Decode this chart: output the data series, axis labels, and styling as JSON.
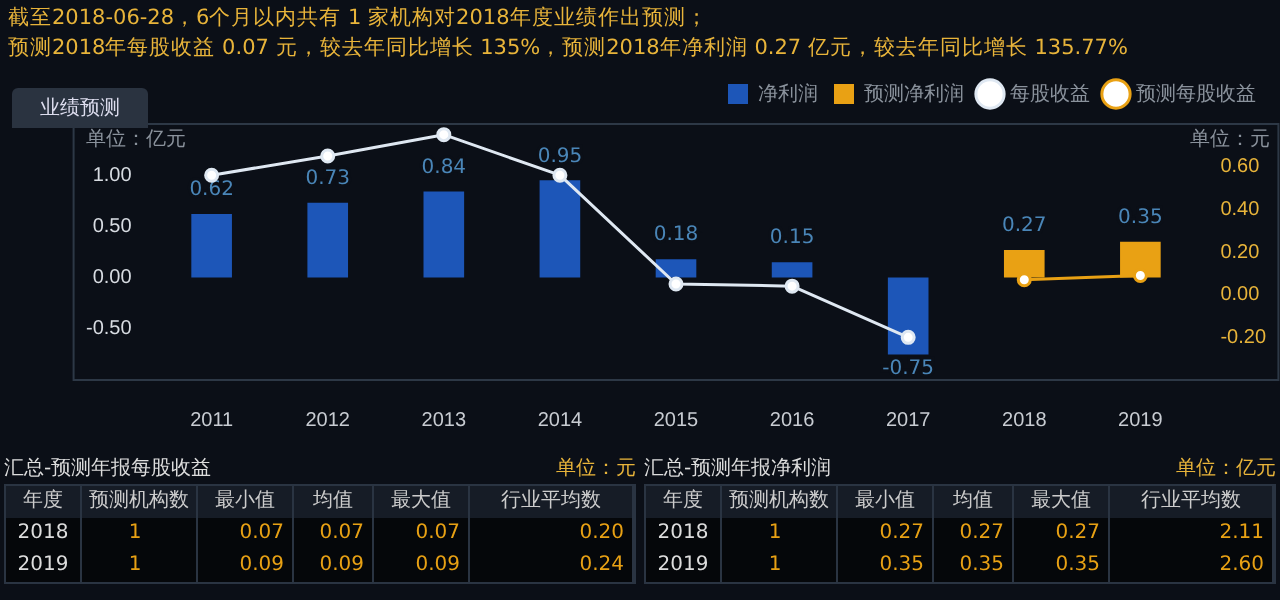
{
  "chart_data": [
    {
      "type": "bar",
      "title": "截至2018-06-28，6个月以内共有 1 家机构对2018年度业绩作出预测；",
      "subtitle": "预测2018年每股收益 0.07 元，较去年同比增长 135%，预测2018年净利润 0.27 亿元，较去年同比增长 135.77%",
      "ylabel": "单位：亿元",
      "y2label": "单位：元",
      "annotations": [
        "业绩预测"
      ],
      "categories": [
        "2011",
        "2012",
        "2013",
        "2014",
        "2015",
        "2016",
        "2017",
        "2018",
        "2019"
      ],
      "series": [
        {
          "name": "净利润",
          "type": "bar",
          "color": "#1d56b8",
          "values": [
            0.62,
            0.73,
            0.84,
            0.95,
            0.18,
            0.15,
            -0.75,
            null,
            null
          ],
          "value_labels": [
            "0.62",
            "0.73",
            "0.84",
            "0.95",
            "0.18",
            "0.15",
            "-0.75",
            null,
            null
          ]
        },
        {
          "name": "预测净利润",
          "type": "bar",
          "color": "#e9a114",
          "values": [
            null,
            null,
            null,
            null,
            null,
            null,
            null,
            0.27,
            0.35
          ],
          "value_labels": [
            null,
            null,
            null,
            null,
            null,
            null,
            null,
            "0.27",
            "0.35"
          ]
        },
        {
          "name": "每股收益",
          "type": "line",
          "axis": "y2",
          "color": "#dfe8f2",
          "values": [
            0.56,
            0.65,
            0.75,
            0.56,
            0.05,
            0.04,
            -0.2,
            null,
            null
          ]
        },
        {
          "name": "预测每股收益",
          "type": "line",
          "axis": "y2",
          "color": "#e9a114",
          "values": [
            null,
            null,
            null,
            null,
            null,
            null,
            null,
            0.07,
            0.09
          ]
        }
      ],
      "ylim": [
        -1,
        1.5
      ],
      "yticks": [
        {
          "value": -0.5,
          "label": "-0.50"
        },
        {
          "value": 0,
          "label": "0.00"
        },
        {
          "value": 0.5,
          "label": "0.50"
        },
        {
          "value": 1,
          "label": "1.00"
        }
      ],
      "y2lim": [
        -0.4,
        0.8
      ],
      "y2ticks": [
        {
          "value": -0.2,
          "label": "-0.20"
        },
        {
          "value": 0,
          "label": "0.00"
        },
        {
          "value": 0.2,
          "label": "0.20"
        },
        {
          "value": 0.4,
          "label": "0.40"
        },
        {
          "value": 0.6,
          "label": "0.60"
        }
      ],
      "legend": "top right",
      "marker": "circle",
      "line_style": "solid",
      "grid": false
    },
    {
      "type": "other",
      "title": "汇总-预测年报每股收益",
      "subtitle": "单位：元",
      "annotations": [
        "年度",
        "预测机构数",
        "最小值",
        "均值",
        "最大值",
        "行业平均数",
        "2018",
        "1",
        "0.07",
        "0.07",
        "0.07",
        "0.20",
        "2019",
        "1",
        "0.09",
        "0.09",
        "0.09",
        "0.24"
      ]
    },
    {
      "type": "other",
      "title": "汇总-预测年报净利润",
      "subtitle": "单位：亿元",
      "annotations": [
        "年度",
        "预测机构数",
        "最小值",
        "均值",
        "最大值",
        "行业平均数",
        "2018",
        "1",
        "0.27",
        "0.27",
        "0.27",
        "2.11",
        "2019",
        "1",
        "0.35",
        "0.35",
        "0.35",
        "2.60"
      ]
    }
  ]
}
